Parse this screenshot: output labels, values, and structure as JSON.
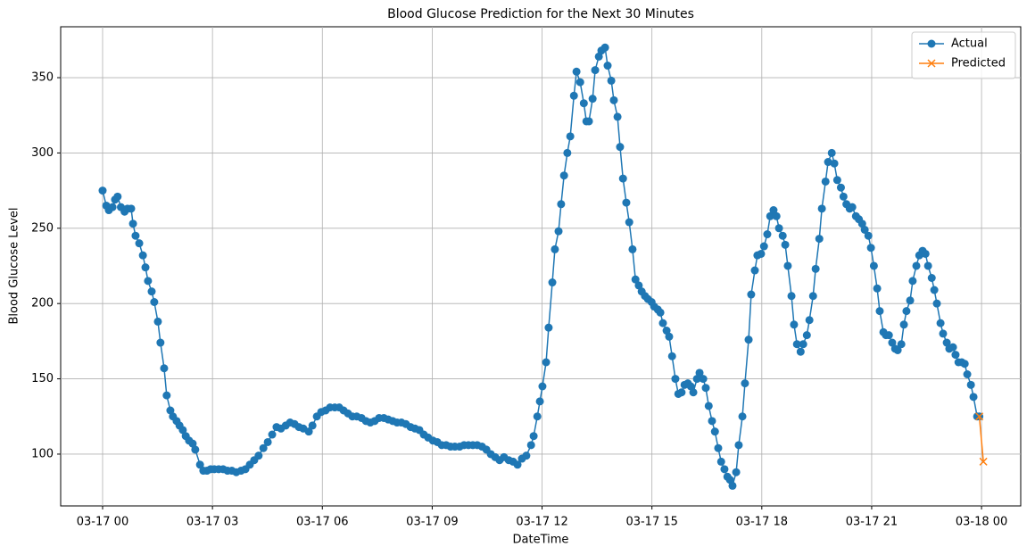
{
  "chart_data": {
    "type": "line",
    "title": "Blood Glucose Prediction for the Next 30 Minutes",
    "x_label": "DateTime",
    "y_label": "Blood Glucose Level",
    "grid": true,
    "legend": "upper right",
    "xlim": [
      -1.145,
      25.07
    ],
    "ylim": [
      65.6,
      383.8
    ],
    "xticks": [
      {
        "value": 0,
        "label": "03-17 00"
      },
      {
        "value": 3,
        "label": "03-17 03"
      },
      {
        "value": 6,
        "label": "03-17 06"
      },
      {
        "value": 9,
        "label": "03-17 09"
      },
      {
        "value": 12,
        "label": "03-17 12"
      },
      {
        "value": 15,
        "label": "03-17 15"
      },
      {
        "value": 18,
        "label": "03-17 18"
      },
      {
        "value": 21,
        "label": "03-17 21"
      },
      {
        "value": 24,
        "label": "03-18 00"
      }
    ],
    "yticks": [
      100,
      150,
      200,
      250,
      300,
      350
    ],
    "series": [
      {
        "name": "Actual",
        "color": "#1f77b4",
        "marker": "o",
        "x": [
          0,
          0.1,
          0.17,
          0.27,
          0.34,
          0.41,
          0.5,
          0.6,
          0.68,
          0.78,
          0.83,
          0.9,
          1.0,
          1.1,
          1.17,
          1.24,
          1.34,
          1.41,
          1.51,
          1.58,
          1.68,
          1.75,
          1.85,
          1.92,
          2.02,
          2.1,
          2.19,
          2.27,
          2.36,
          2.46,
          2.53,
          2.66,
          2.75,
          2.85,
          2.95,
          3.05,
          3.17,
          3.29,
          3.41,
          3.53,
          3.65,
          3.78,
          3.9,
          4.02,
          4.14,
          4.26,
          4.39,
          4.51,
          4.63,
          4.75,
          4.87,
          5.0,
          5.12,
          5.24,
          5.36,
          5.48,
          5.63,
          5.73,
          5.85,
          5.97,
          6.09,
          6.21,
          6.34,
          6.46,
          6.58,
          6.7,
          6.82,
          6.94,
          7.07,
          7.19,
          7.31,
          7.43,
          7.55,
          7.68,
          7.8,
          7.92,
          8.04,
          8.16,
          8.28,
          8.41,
          8.53,
          8.65,
          8.77,
          8.89,
          9.02,
          9.14,
          9.26,
          9.38,
          9.5,
          9.62,
          9.75,
          9.87,
          9.99,
          10.11,
          10.23,
          10.36,
          10.48,
          10.6,
          10.72,
          10.84,
          10.96,
          11.09,
          11.21,
          11.33,
          11.45,
          11.57,
          11.7,
          11.77,
          11.87,
          11.94,
          12.01,
          12.11,
          12.18,
          12.28,
          12.35,
          12.45,
          12.52,
          12.6,
          12.69,
          12.77,
          12.87,
          12.94,
          13.04,
          13.14,
          13.21,
          13.28,
          13.38,
          13.45,
          13.55,
          13.62,
          13.72,
          13.79,
          13.89,
          13.96,
          14.06,
          14.13,
          14.21,
          14.3,
          14.38,
          14.47,
          14.55,
          14.64,
          14.72,
          14.81,
          14.89,
          14.99,
          15.06,
          15.16,
          15.23,
          15.3,
          15.4,
          15.47,
          15.55,
          15.64,
          15.72,
          15.81,
          15.89,
          15.98,
          16.06,
          16.13,
          16.23,
          16.3,
          16.4,
          16.47,
          16.55,
          16.64,
          16.72,
          16.81,
          16.89,
          16.98,
          17.06,
          17.13,
          17.2,
          17.3,
          17.37,
          17.47,
          17.54,
          17.64,
          17.71,
          17.81,
          17.88,
          17.98,
          18.06,
          18.15,
          18.23,
          18.32,
          18.4,
          18.47,
          18.57,
          18.64,
          18.71,
          18.81,
          18.88,
          18.96,
          19.06,
          19.13,
          19.23,
          19.3,
          19.4,
          19.47,
          19.57,
          19.64,
          19.74,
          19.81,
          19.91,
          19.98,
          20.06,
          20.16,
          20.23,
          20.31,
          20.4,
          20.47,
          20.57,
          20.65,
          20.74,
          20.81,
          20.91,
          20.98,
          21.06,
          21.15,
          21.22,
          21.32,
          21.39,
          21.47,
          21.56,
          21.64,
          21.71,
          21.81,
          21.88,
          21.95,
          22.05,
          22.12,
          22.22,
          22.3,
          22.39,
          22.47,
          22.54,
          22.64,
          22.71,
          22.78,
          22.88,
          22.95,
          23.05,
          23.12,
          23.22,
          23.29,
          23.37,
          23.46,
          23.54,
          23.61,
          23.71,
          23.78,
          23.88,
          23.94
        ],
        "values": [
          275,
          265,
          262,
          264,
          269,
          271,
          264,
          261,
          263,
          263,
          253,
          245,
          240,
          232,
          224,
          215,
          208,
          201,
          188,
          174,
          157,
          139,
          129,
          125,
          122,
          119,
          116,
          112,
          109,
          107,
          103,
          93,
          89,
          89,
          90,
          90,
          90,
          90,
          89,
          89,
          88,
          89,
          90,
          93,
          96,
          99,
          104,
          108,
          113,
          118,
          117,
          119,
          121,
          120,
          118,
          117,
          115,
          119,
          125,
          128,
          129,
          131,
          131,
          131,
          129,
          127,
          125,
          125,
          124,
          122,
          121,
          122,
          124,
          124,
          123,
          122,
          121,
          121,
          120,
          118,
          117,
          116,
          113,
          111,
          109,
          108,
          106,
          106,
          105,
          105,
          105,
          106,
          106,
          106,
          106,
          105,
          103,
          100,
          98,
          96,
          98,
          96,
          95,
          93,
          97,
          99,
          106,
          112,
          125,
          135,
          145,
          161,
          184,
          214,
          236,
          248,
          266,
          285,
          300,
          311,
          338,
          354,
          347,
          333,
          321,
          321,
          336,
          355,
          364,
          368,
          370,
          358,
          348,
          335,
          324,
          304,
          283,
          267,
          254,
          236,
          216,
          212,
          208,
          205,
          203,
          201,
          198,
          196,
          194,
          187,
          182,
          178,
          165,
          150,
          140,
          141,
          146,
          147,
          145,
          141,
          150,
          154,
          150,
          144,
          132,
          122,
          115,
          104,
          95,
          90,
          85,
          83,
          79,
          88,
          106,
          125,
          147,
          176,
          206,
          222,
          232,
          233,
          238,
          246,
          258,
          262,
          258,
          250,
          245,
          239,
          225,
          205,
          186,
          173,
          168,
          173,
          179,
          189,
          205,
          223,
          243,
          263,
          281,
          294,
          300,
          293,
          282,
          277,
          271,
          266,
          263,
          264,
          258,
          256,
          253,
          249,
          245,
          237,
          225,
          210,
          195,
          181,
          179,
          179,
          174,
          170,
          169,
          173,
          186,
          195,
          202,
          215,
          225,
          232,
          235,
          233,
          225,
          217,
          209,
          200,
          187,
          180,
          174,
          170,
          171,
          166,
          161,
          161,
          160,
          153,
          146,
          138,
          125,
          125
        ]
      },
      {
        "name": "Predicted",
        "color": "#ff7f0e",
        "marker": "x",
        "x": [
          23.94,
          24.05
        ],
        "values": [
          125,
          95
        ]
      }
    ]
  }
}
